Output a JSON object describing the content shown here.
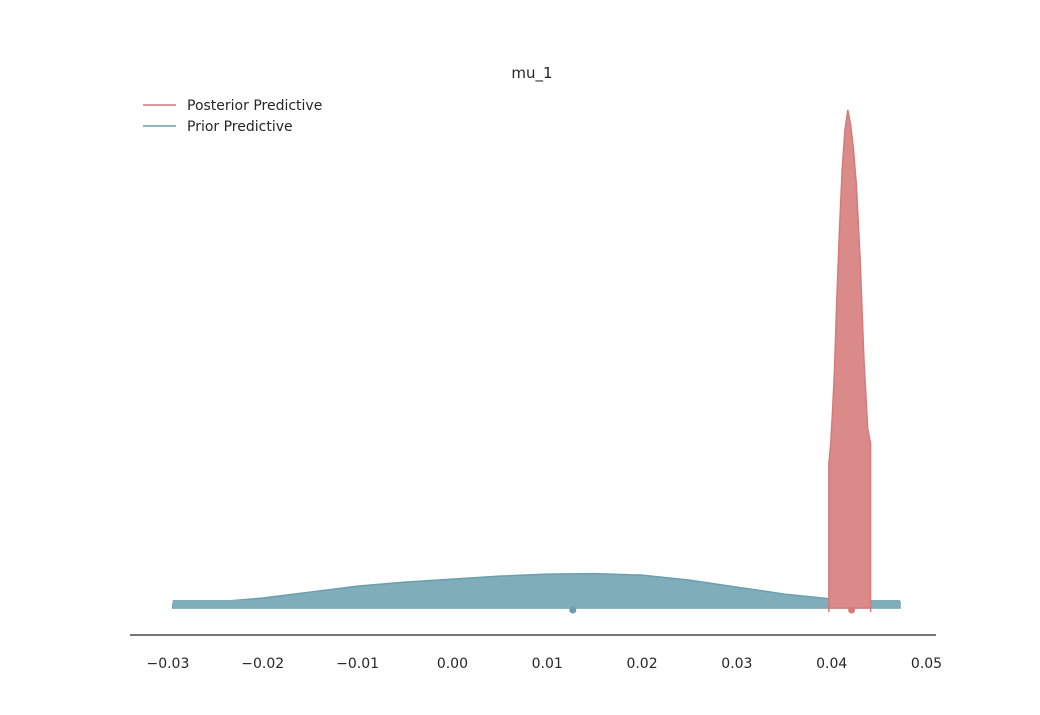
{
  "chart_data": {
    "type": "area",
    "title": "mu_1",
    "xlabel": "",
    "ylabel": "",
    "xlim": [
      -0.034,
      0.051
    ],
    "xticks": [
      -0.03,
      -0.02,
      -0.01,
      0.0,
      0.01,
      0.02,
      0.03,
      0.04,
      0.05
    ],
    "xtick_labels": [
      "−0.03",
      "−0.02",
      "−0.01",
      "0.00",
      "0.01",
      "0.02",
      "0.03",
      "0.04",
      "0.05"
    ],
    "grid": false,
    "legend_position": "top-left",
    "series": [
      {
        "name": "Posterior Predictive",
        "color": "#d98a89",
        "edge_color": "#d67b7a",
        "points": [
          [
            0.0397,
            0.29
          ],
          [
            0.0399,
            0.33
          ],
          [
            0.0401,
            0.4
          ],
          [
            0.0403,
            0.48
          ],
          [
            0.0405,
            0.6
          ],
          [
            0.0408,
            0.75
          ],
          [
            0.0411,
            0.88
          ],
          [
            0.0414,
            0.96
          ],
          [
            0.0417,
            1.0
          ],
          [
            0.042,
            0.97
          ],
          [
            0.0423,
            0.92
          ],
          [
            0.0426,
            0.85
          ],
          [
            0.043,
            0.7
          ],
          [
            0.0434,
            0.5
          ],
          [
            0.0438,
            0.36
          ],
          [
            0.0441,
            0.33
          ]
        ],
        "point_estimate": 0.0421,
        "hdi": [
          0.0397,
          0.0441
        ]
      },
      {
        "name": "Prior Predictive",
        "color": "#7fadb9",
        "edge_color": "#6a9fae",
        "points": [
          [
            -0.0295,
            0.008
          ],
          [
            -0.025,
            0.012
          ],
          [
            -0.02,
            0.02
          ],
          [
            -0.015,
            0.032
          ],
          [
            -0.01,
            0.044
          ],
          [
            -0.005,
            0.052
          ],
          [
            0.0,
            0.058
          ],
          [
            0.005,
            0.064
          ],
          [
            0.01,
            0.068
          ],
          [
            0.015,
            0.069
          ],
          [
            0.02,
            0.066
          ],
          [
            0.025,
            0.056
          ],
          [
            0.03,
            0.042
          ],
          [
            0.035,
            0.028
          ],
          [
            0.04,
            0.018
          ],
          [
            0.0441,
            0.013
          ],
          [
            0.0472,
            0.012
          ]
        ],
        "point_estimate": 0.0127,
        "hdi": [
          -0.0295,
          0.0472
        ]
      }
    ]
  }
}
